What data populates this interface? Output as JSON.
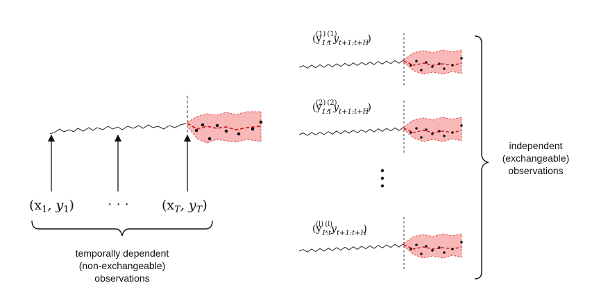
{
  "left": {
    "labels": {
      "first": "(x",
      "first_sub": "1",
      "first_mid": ", y",
      "first_sub2": "1",
      "first_end": ")",
      "dots": "· · ·",
      "last": "(x",
      "last_sub": "T",
      "last_mid": ", y",
      "last_sub2": "T",
      "last_end": ")"
    },
    "caption": [
      "temporally dependent",
      "(non-exchangeable)",
      "observations"
    ]
  },
  "right": {
    "series": [
      {
        "sup": "(1)"
      },
      {
        "sup": "(2)"
      },
      {
        "sup": "(l)"
      }
    ],
    "label_parts": {
      "open": "(y",
      "sub1": "1:t",
      "comma": ", y",
      "sub2": "t+1:t+H",
      "close": ")"
    },
    "vdots": "⋮",
    "caption": [
      "independent",
      "(exchangeable)",
      "observations"
    ]
  },
  "colors": {
    "band_fill": "#f8b8b8",
    "band_edge": "#e05050",
    "median": "#cc1111",
    "points": "#111111",
    "line": "#222222"
  }
}
